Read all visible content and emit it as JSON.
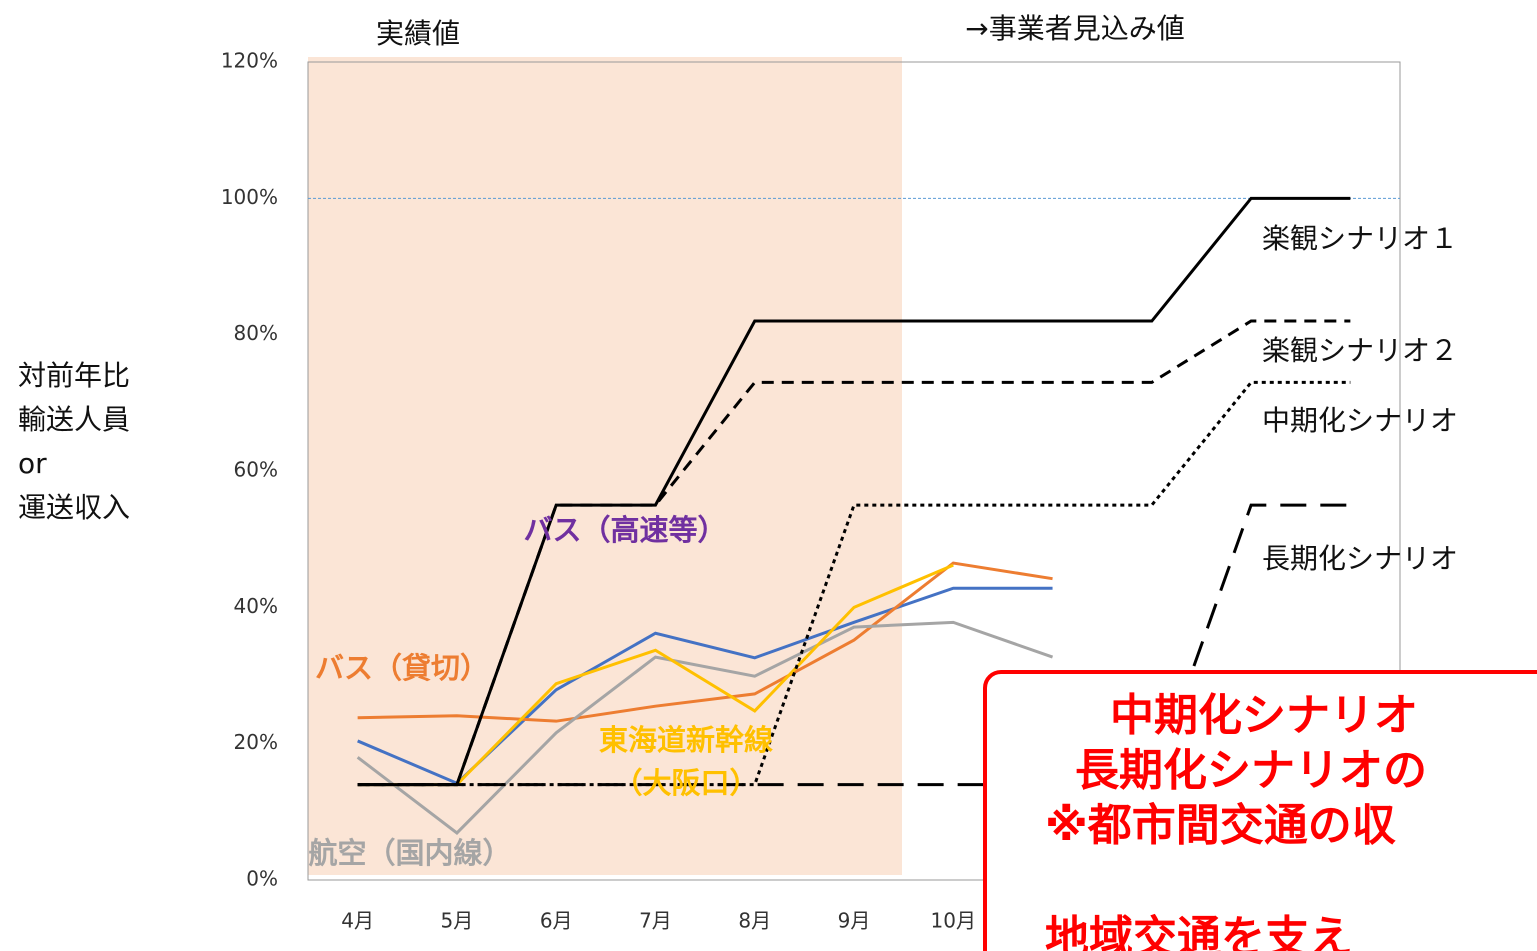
{
  "chart_data": {
    "type": "line",
    "ylabel": [
      "対前年比",
      "輸送人員",
      " or",
      "運送収入"
    ],
    "region_labels": [
      "実績値",
      "→事業者見込み値"
    ],
    "categories": [
      "4月",
      "5月",
      "6月",
      "7月",
      "8月",
      "9月",
      "10月",
      null,
      null,
      null,
      null
    ],
    "ylim": [
      0,
      120
    ],
    "yticks": [
      {
        "value": 0,
        "label": "0%"
      },
      {
        "value": 20,
        "label": "20%"
      },
      {
        "value": 40,
        "label": "40%"
      },
      {
        "value": 60,
        "label": "60%"
      },
      {
        "value": 80,
        "label": "80%"
      },
      {
        "value": 100,
        "label": "100%"
      },
      {
        "value": 120,
        "label": "120%"
      }
    ],
    "reference_line": 100,
    "series": [
      {
        "name": [
          "楽観シナリオ１"
        ],
        "color": "#000000",
        "dash": "solid",
        "values": [
          14,
          14,
          55,
          55,
          82,
          82,
          82,
          82,
          82,
          100,
          100
        ]
      },
      {
        "name": [
          "楽観シナリオ２"
        ],
        "color": "#000000",
        "dash": "dashed",
        "values": [
          14,
          14,
          55,
          55,
          73,
          73,
          73,
          73,
          73,
          82,
          82
        ]
      },
      {
        "name": [
          "中期化シナリオ"
        ],
        "color": "#000000",
        "dash": "dotted",
        "values": [
          14,
          14,
          14,
          14,
          14,
          55,
          55,
          55,
          55,
          73,
          73
        ]
      },
      {
        "name": [
          "長期化シナリオ"
        ],
        "color": "#000000",
        "dash": "longdash",
        "values": [
          14,
          14,
          14,
          14,
          14,
          14,
          14,
          14,
          14,
          55,
          55
        ]
      },
      {
        "name": [
          "バス（高速等）"
        ],
        "color": "#4472c4",
        "label_color": "#7030a0",
        "dash": "solid",
        "values": [
          20.4,
          14.2,
          27.9,
          36.2,
          32.6,
          37.8,
          42.8,
          42.8,
          null,
          null,
          null
        ]
      },
      {
        "name": [
          "バス（貸切）"
        ],
        "color": "#ed7d31",
        "label_color": "#ed7d31",
        "dash": "solid",
        "values": [
          23.8,
          24.1,
          23.3,
          25.5,
          27.3,
          35.2,
          46.5,
          44.2,
          null,
          null,
          null
        ]
      },
      {
        "name": [
          "東海道新幹線",
          "（大阪口）"
        ],
        "color": "#ffc000",
        "label_color": "#ffc000",
        "dash": "solid",
        "values": [
          14,
          14,
          28.8,
          33.7,
          24.8,
          40,
          46.2,
          null,
          null,
          null,
          null
        ]
      },
      {
        "name": [
          "航空（国内線）"
        ],
        "color": "#a5a5a5",
        "label_color": "#a5a5a5",
        "dash": "solid",
        "values": [
          18,
          6.9,
          21.6,
          32.7,
          29.9,
          37.1,
          37.8,
          32.7,
          null,
          null,
          null
        ]
      }
    ],
    "annotation": [
      "中期化シナリオ",
      "長期化シナリオの",
      "※都市間交通の収",
      "地域交通を支え"
    ]
  }
}
